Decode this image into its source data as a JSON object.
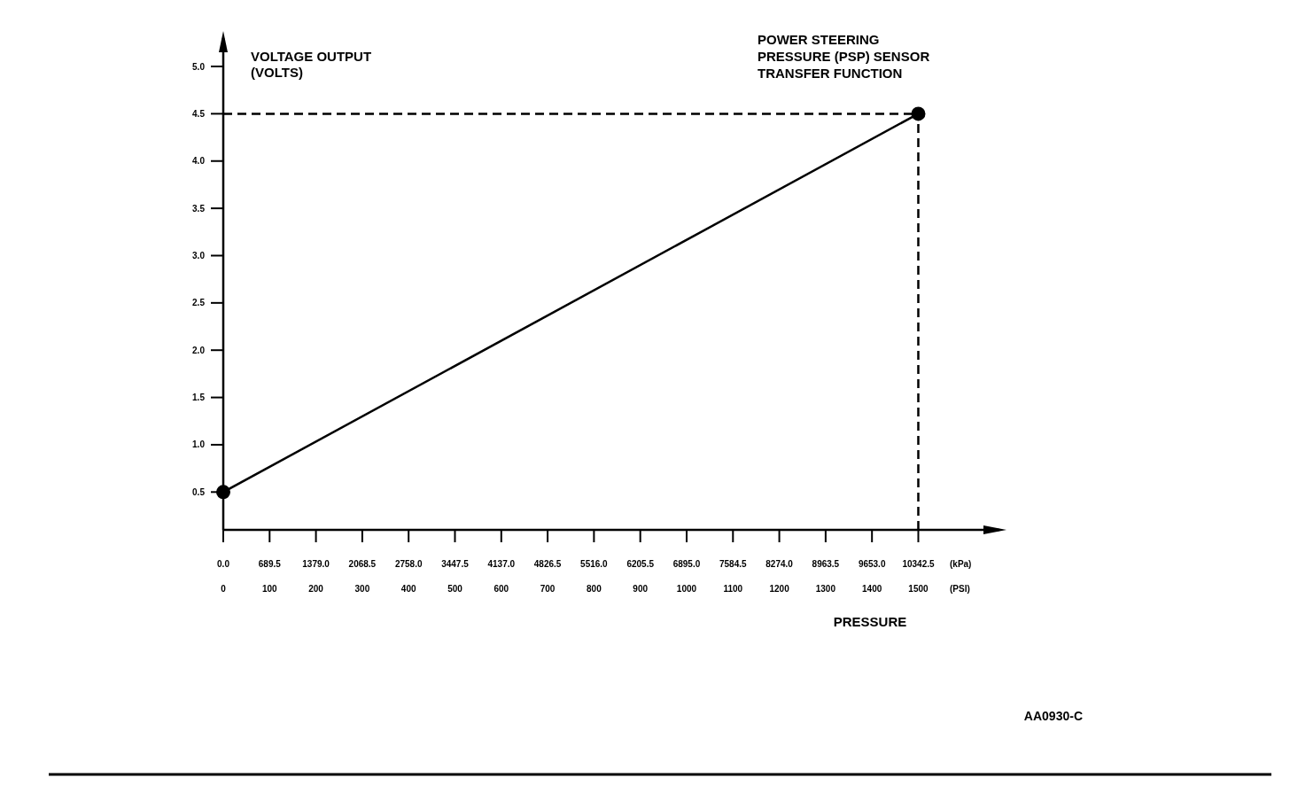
{
  "chart_data": {
    "type": "line",
    "title": "POWER STEERING\nPRESSURE (PSP) SENSOR\nTRANSFER FUNCTION",
    "ylabel": "VOLTAGE OUTPUT\n(VOLTS)",
    "xlabel": "PRESSURE",
    "annotations": [
      "(kPa)",
      "(PSI)",
      "AA0930-C"
    ],
    "x": [
      0,
      1500
    ],
    "series": [
      {
        "color": "#000000",
        "values": [
          0.5,
          4.5
        ]
      }
    ],
    "marker": "circle",
    "line_style": "solid",
    "grid": false,
    "xlim": [
      0,
      1675
    ],
    "xticks": [
      0,
      100,
      200,
      300,
      400,
      500,
      600,
      700,
      800,
      900,
      1000,
      1100,
      1200,
      1300,
      1400,
      1500
    ],
    "x2lim": [
      0,
      11549
    ],
    "x2ticks": [
      {
        "value": 0,
        "label": "0.0"
      },
      689.5,
      {
        "value": 1379,
        "label": "1379.0"
      },
      2068.5,
      {
        "value": 2758,
        "label": "2758.0"
      },
      3447.5,
      {
        "value": 4137,
        "label": "4137.0"
      },
      4826.5,
      {
        "value": 5516,
        "label": "5516.0"
      },
      6205.5,
      {
        "value": 6895,
        "label": "6895.0"
      },
      7584.5,
      {
        "value": 8274,
        "label": "8274.0"
      },
      8963.5,
      {
        "value": 9653,
        "label": "9653.0"
      },
      10342.5
    ],
    "ylim": [
      0.1,
      5.3
    ],
    "yticks": [
      0.5,
      {
        "value": 1,
        "label": "1.0"
      },
      1.5,
      {
        "value": 2,
        "label": "2.0"
      },
      2.5,
      {
        "value": 3,
        "label": "3.0"
      },
      3.5,
      {
        "value": 4,
        "label": "4.0"
      },
      4.5,
      {
        "value": 5,
        "label": "5.0"
      }
    ],
    "ref_lines": [
      {
        "axis": "y",
        "value": 4.5,
        "line_style": "dashed",
        "color": "#000000"
      },
      {
        "axis": "x",
        "value": 1500,
        "line_style": "dashed",
        "color": "#000000"
      }
    ]
  }
}
